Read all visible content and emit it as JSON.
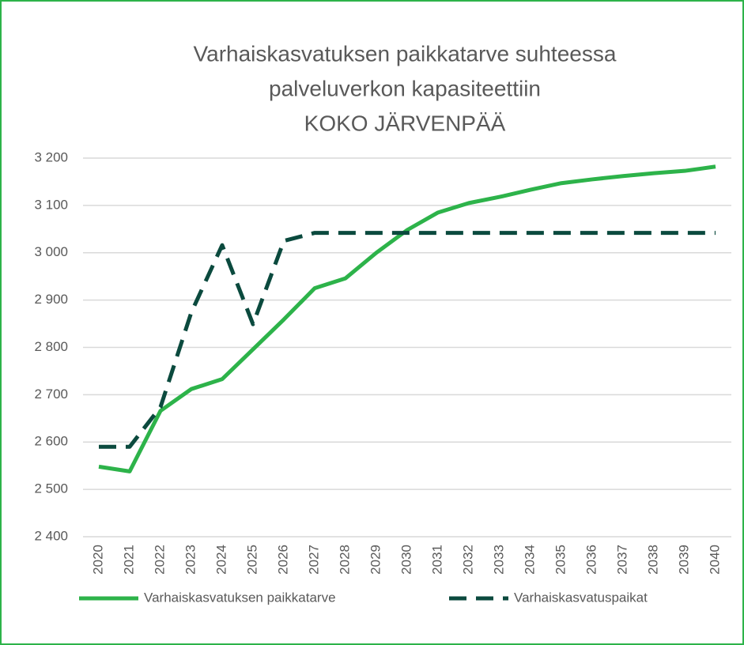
{
  "chart_data": {
    "type": "line",
    "title": [
      "Varhaiskasvatuksen paikkatarve suhteessa",
      "palveluverkon kapasiteettiin",
      "KOKO JÄRVENPÄÄ"
    ],
    "categories": [
      "2020",
      "2021",
      "2022",
      "2023",
      "2024",
      "2025",
      "2026",
      "2027",
      "2028",
      "2029",
      "2030",
      "2031",
      "2032",
      "2033",
      "2034",
      "2035",
      "2036",
      "2037",
      "2038",
      "2039",
      "2040"
    ],
    "series": [
      {
        "name": "Varhaiskasvatuksen paikkatarve",
        "color": "#2db34a",
        "dash": false,
        "values": [
          2548,
          2538,
          2666,
          2712,
          2733,
          2796,
          2859,
          2925,
          2946,
          3000,
          3048,
          3085,
          3105,
          3118,
          3133,
          3147,
          3155,
          3162,
          3168,
          3173,
          3182
        ]
      },
      {
        "name": "Varhaiskasvatuspaikat",
        "color": "#0b4a3e",
        "dash": true,
        "values": [
          2590,
          2590,
          2674,
          2874,
          3016,
          2849,
          3025,
          3042,
          3042,
          3042,
          3042,
          3042,
          3042,
          3042,
          3042,
          3042,
          3042,
          3042,
          3042,
          3042,
          3042
        ]
      }
    ],
    "ylim": [
      2400,
      3200
    ],
    "yticks": [
      {
        "value": 2400,
        "label": "2 400"
      },
      {
        "value": 2500,
        "label": "2 500"
      },
      {
        "value": 2600,
        "label": "2 600"
      },
      {
        "value": 2700,
        "label": "2 700"
      },
      {
        "value": 2800,
        "label": "2 800"
      },
      {
        "value": 2900,
        "label": "2 900"
      },
      {
        "value": 3000,
        "label": "3 000"
      },
      {
        "value": 3100,
        "label": "3 100"
      },
      {
        "value": 3200,
        "label": "3 200"
      }
    ],
    "grid": true,
    "legend": "bottom"
  }
}
